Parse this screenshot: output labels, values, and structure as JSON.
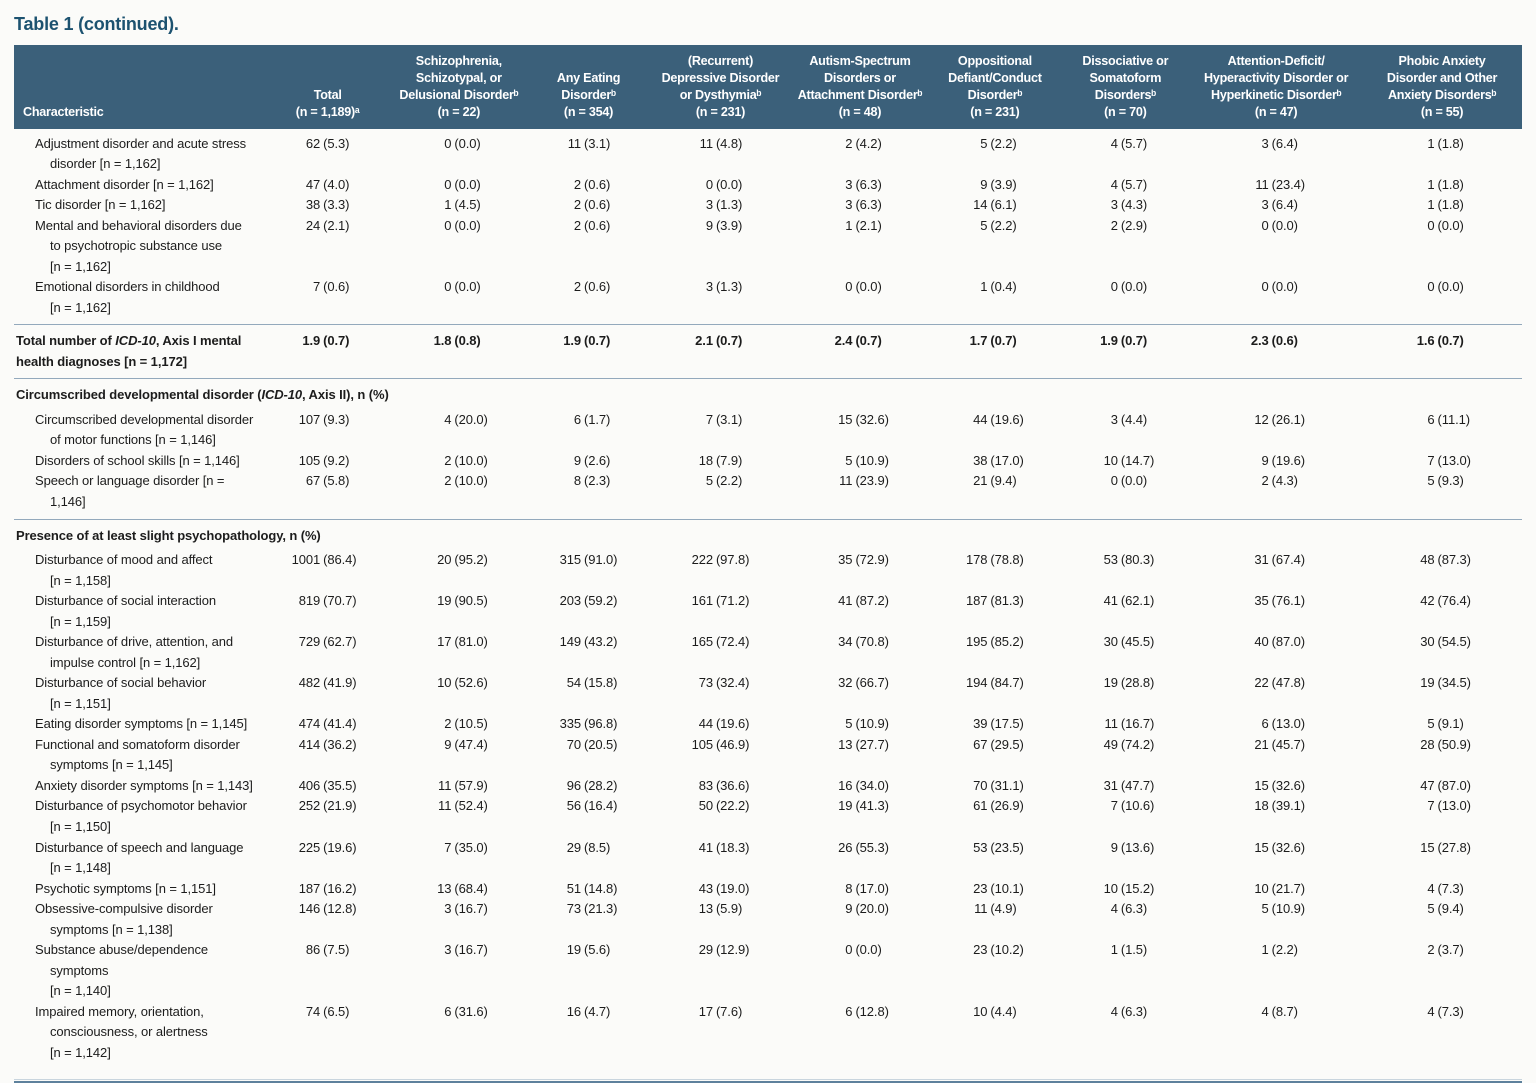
{
  "title": "Table 1 (continued).",
  "colors": {
    "header_bg": "#3b607a",
    "header_text": "#ffffff",
    "title_color": "#1c5270",
    "body_text": "#1c1c1c",
    "rule": "#93a9bc",
    "rule_light": "#c9d5de",
    "rule_dark": "#5e819c",
    "page_bg": "#fbfbf9"
  },
  "columns": [
    {
      "key": "characteristic",
      "label": "Characteristic"
    },
    {
      "key": "total",
      "label": "Total\n(n = 1,189)ᵃ"
    },
    {
      "key": "schizophrenia",
      "label": "Schizophrenia,\nSchizotypal, or\nDelusional Disorderᵇ\n(n = 22)"
    },
    {
      "key": "eating-disorder",
      "label": "Any Eating\nDisorderᵇ\n(n = 354)"
    },
    {
      "key": "depressive",
      "label": "(Recurrent)\nDepressive Disorder\nor Dysthymiaᵇ\n(n = 231)"
    },
    {
      "key": "autism",
      "label": "Autism-Spectrum\nDisorders or\nAttachment Disorderᵇ\n(n = 48)"
    },
    {
      "key": "oppositional",
      "label": "Oppositional\nDefiant/Conduct\nDisorderᵇ\n(n = 231)"
    },
    {
      "key": "dissociative",
      "label": "Dissociative or\nSomatoform\nDisordersᵇ\n(n = 70)"
    },
    {
      "key": "adhd",
      "label": "Attention-Deficit/\nHyperactivity Disorder or\nHyperkinetic Disorderᵇ\n(n = 47)"
    },
    {
      "key": "phobic-anxiety",
      "label": "Phobic Anxiety\nDisorder and Other\nAnxiety Disordersᵇ\n(n = 55)"
    }
  ],
  "rows": [
    {
      "type": "item",
      "label": "Adjustment disorder and acute stress\ndisorder [n = 1,162]",
      "values": [
        "62 (5.3)",
        "0 (0.0)",
        "11 (3.1)",
        "11 (4.8)",
        "2 (4.2)",
        "5 (2.2)",
        "4 (5.7)",
        "3 (6.4)",
        "1 (1.8)"
      ]
    },
    {
      "type": "item",
      "label": "Attachment disorder [n = 1,162]",
      "values": [
        "47 (4.0)",
        "0 (0.0)",
        "2 (0.6)",
        "0 (0.0)",
        "3 (6.3)",
        "9 (3.9)",
        "4 (5.7)",
        "11 (23.4)",
        "1 (1.8)"
      ]
    },
    {
      "type": "item",
      "label": "Tic disorder [n = 1,162]",
      "values": [
        "38 (3.3)",
        "1 (4.5)",
        "2 (0.6)",
        "3 (1.3)",
        "3 (6.3)",
        "14 (6.1)",
        "3 (4.3)",
        "3 (6.4)",
        "1 (1.8)"
      ]
    },
    {
      "type": "item",
      "label": "Mental and behavioral disorders due\nto psychotropic substance use\n[n = 1,162]",
      "values": [
        "24 (2.1)",
        "0 (0.0)",
        "2 (0.6)",
        "9 (3.9)",
        "1 (2.1)",
        "5 (2.2)",
        "2 (2.9)",
        "0 (0.0)",
        "0 (0.0)"
      ]
    },
    {
      "type": "item",
      "label": "Emotional disorders in childhood\n[n = 1,162]",
      "values": [
        "7 (0.6)",
        "0 (0.0)",
        "2 (0.6)",
        "3 (1.3)",
        "0 (0.0)",
        "1 (0.4)",
        "0 (0.0)",
        "0 (0.0)",
        "0 (0.0)"
      ]
    },
    {
      "type": "total",
      "rule": true,
      "rich": [
        {
          "t": "Total number of "
        },
        {
          "t": "ICD-10",
          "i": true
        },
        {
          "t": ", Axis I mental\nhealth diagnoses [n = 1,172]"
        }
      ],
      "label": "Total number of ICD-10, Axis I mental\nhealth diagnoses [n = 1,172]",
      "values": [
        "1.9 (0.7)",
        "1.8 (0.8)",
        "1.9 (0.7)",
        "2.1 (0.7)",
        "2.4 (0.7)",
        "1.7 (0.7)",
        "1.9 (0.7)",
        "2.3 (0.6)",
        "1.6 (0.7)"
      ]
    },
    {
      "type": "section",
      "rule": true,
      "rich": [
        {
          "t": "Circumscribed developmental disorder ("
        },
        {
          "t": "ICD-10",
          "i": true
        },
        {
          "t": ", Axis II), n (%)"
        }
      ],
      "label": "Circumscribed developmental disorder (ICD-10, Axis II), n (%)"
    },
    {
      "type": "item",
      "label": "Circumscribed developmental disorder\nof motor functions [n = 1,146]",
      "values": [
        "107 (9.3)",
        "4 (20.0)",
        "6 (1.7)",
        "7 (3.1)",
        "15 (32.6)",
        "44 (19.6)",
        "3 (4.4)",
        "12 (26.1)",
        "6 (11.1)"
      ]
    },
    {
      "type": "item",
      "label": "Disorders of school skills [n = 1,146]",
      "values": [
        "105 (9.2)",
        "2 (10.0)",
        "9 (2.6)",
        "18 (7.9)",
        "5 (10.9)",
        "38 (17.0)",
        "10 (14.7)",
        "9 (19.6)",
        "7 (13.0)"
      ]
    },
    {
      "type": "item",
      "label": "Speech or language disorder [n = 1,146]",
      "values": [
        "67 (5.8)",
        "2 (10.0)",
        "8 (2.3)",
        "5 (2.2)",
        "11 (23.9)",
        "21 (9.4)",
        "0 (0.0)",
        "2 (4.3)",
        "5 (9.3)"
      ]
    },
    {
      "type": "section",
      "rule": true,
      "label": "Presence of at least slight psychopathology, n (%)"
    },
    {
      "type": "item",
      "label": "Disturbance of mood and affect\n[n = 1,158]",
      "values": [
        "1001 (86.4)",
        "20 (95.2)",
        "315 (91.0)",
        "222 (97.8)",
        "35 (72.9)",
        "178 (78.8)",
        "53 (80.3)",
        "31 (67.4)",
        "48 (87.3)"
      ]
    },
    {
      "type": "item",
      "label": "Disturbance of social interaction\n[n = 1,159]",
      "values": [
        "819 (70.7)",
        "19 (90.5)",
        "203 (59.2)",
        "161 (71.2)",
        "41 (87.2)",
        "187 (81.3)",
        "41 (62.1)",
        "35 (76.1)",
        "42 (76.4)"
      ]
    },
    {
      "type": "item",
      "label": "Disturbance of drive, attention, and\nimpulse control [n = 1,162]",
      "values": [
        "729 (62.7)",
        "17 (81.0)",
        "149 (43.2)",
        "165 (72.4)",
        "34 (70.8)",
        "195 (85.2)",
        "30 (45.5)",
        "40 (87.0)",
        "30 (54.5)"
      ]
    },
    {
      "type": "item",
      "label": "Disturbance of social behavior\n[n = 1,151]",
      "values": [
        "482 (41.9)",
        "10 (52.6)",
        "54 (15.8)",
        "73 (32.4)",
        "32 (66.7)",
        "194 (84.7)",
        "19 (28.8)",
        "22 (47.8)",
        "19 (34.5)"
      ]
    },
    {
      "type": "item",
      "label": "Eating disorder symptoms [n = 1,145]",
      "values": [
        "474 (41.4)",
        "2 (10.5)",
        "335 (96.8)",
        "44 (19.6)",
        "5 (10.9)",
        "39 (17.5)",
        "11 (16.7)",
        "6 (13.0)",
        "5 (9.1)"
      ]
    },
    {
      "type": "item",
      "label": "Functional and somatoform disorder\nsymptoms [n = 1,145]",
      "values": [
        "414 (36.2)",
        "9 (47.4)",
        "70 (20.5)",
        "105 (46.9)",
        "13 (27.7)",
        "67 (29.5)",
        "49 (74.2)",
        "21 (45.7)",
        "28 (50.9)"
      ]
    },
    {
      "type": "item",
      "label": "Anxiety disorder symptoms [n = 1,143]",
      "values": [
        "406 (35.5)",
        "11 (57.9)",
        "96 (28.2)",
        "83 (36.6)",
        "16 (34.0)",
        "70 (31.1)",
        "31 (47.7)",
        "15 (32.6)",
        "47 (87.0)"
      ]
    },
    {
      "type": "item",
      "label": "Disturbance of psychomotor behavior\n[n = 1,150]",
      "values": [
        "252 (21.9)",
        "11 (52.4)",
        "56 (16.4)",
        "50 (22.2)",
        "19 (41.3)",
        "61 (26.9)",
        "7 (10.6)",
        "18 (39.1)",
        "7 (13.0)"
      ]
    },
    {
      "type": "item",
      "label": "Disturbance of speech and language\n[n = 1,148]",
      "values": [
        "225 (19.6)",
        "7 (35.0)",
        "29 (8.5)",
        "41 (18.3)",
        "26 (55.3)",
        "53 (23.5)",
        "9 (13.6)",
        "15 (32.6)",
        "15 (27.8)"
      ]
    },
    {
      "type": "item",
      "label": "Psychotic symptoms [n = 1,151]",
      "values": [
        "187 (16.2)",
        "13 (68.4)",
        "51 (14.8)",
        "43 (19.0)",
        "8 (17.0)",
        "23 (10.1)",
        "10 (15.2)",
        "10 (21.7)",
        "4 (7.3)"
      ]
    },
    {
      "type": "item",
      "label": "Obsessive-compulsive disorder\nsymptoms [n = 1,138]",
      "values": [
        "146 (12.8)",
        "3 (16.7)",
        "73 (21.3)",
        "13 (5.9)",
        "9 (20.0)",
        "11 (4.9)",
        "4 (6.3)",
        "5 (10.9)",
        "5 (9.4)"
      ]
    },
    {
      "type": "item",
      "label": "Substance abuse/dependence symptoms\n[n = 1,140]",
      "values": [
        "86 (7.5)",
        "3 (16.7)",
        "19 (5.6)",
        "29 (12.9)",
        "0 (0.0)",
        "23 (10.2)",
        "1 (1.5)",
        "1 (2.2)",
        "2 (3.7)"
      ]
    },
    {
      "type": "item",
      "label": "Impaired memory, orientation,\nconsciousness, or alertness\n[n = 1,142]",
      "values": [
        "74 (6.5)",
        "6 (31.6)",
        "16 (4.7)",
        "17 (7.6)",
        "6 (12.8)",
        "10 (4.4)",
        "4 (6.3)",
        "4 (8.7)",
        "4 (7.3)"
      ]
    }
  ]
}
